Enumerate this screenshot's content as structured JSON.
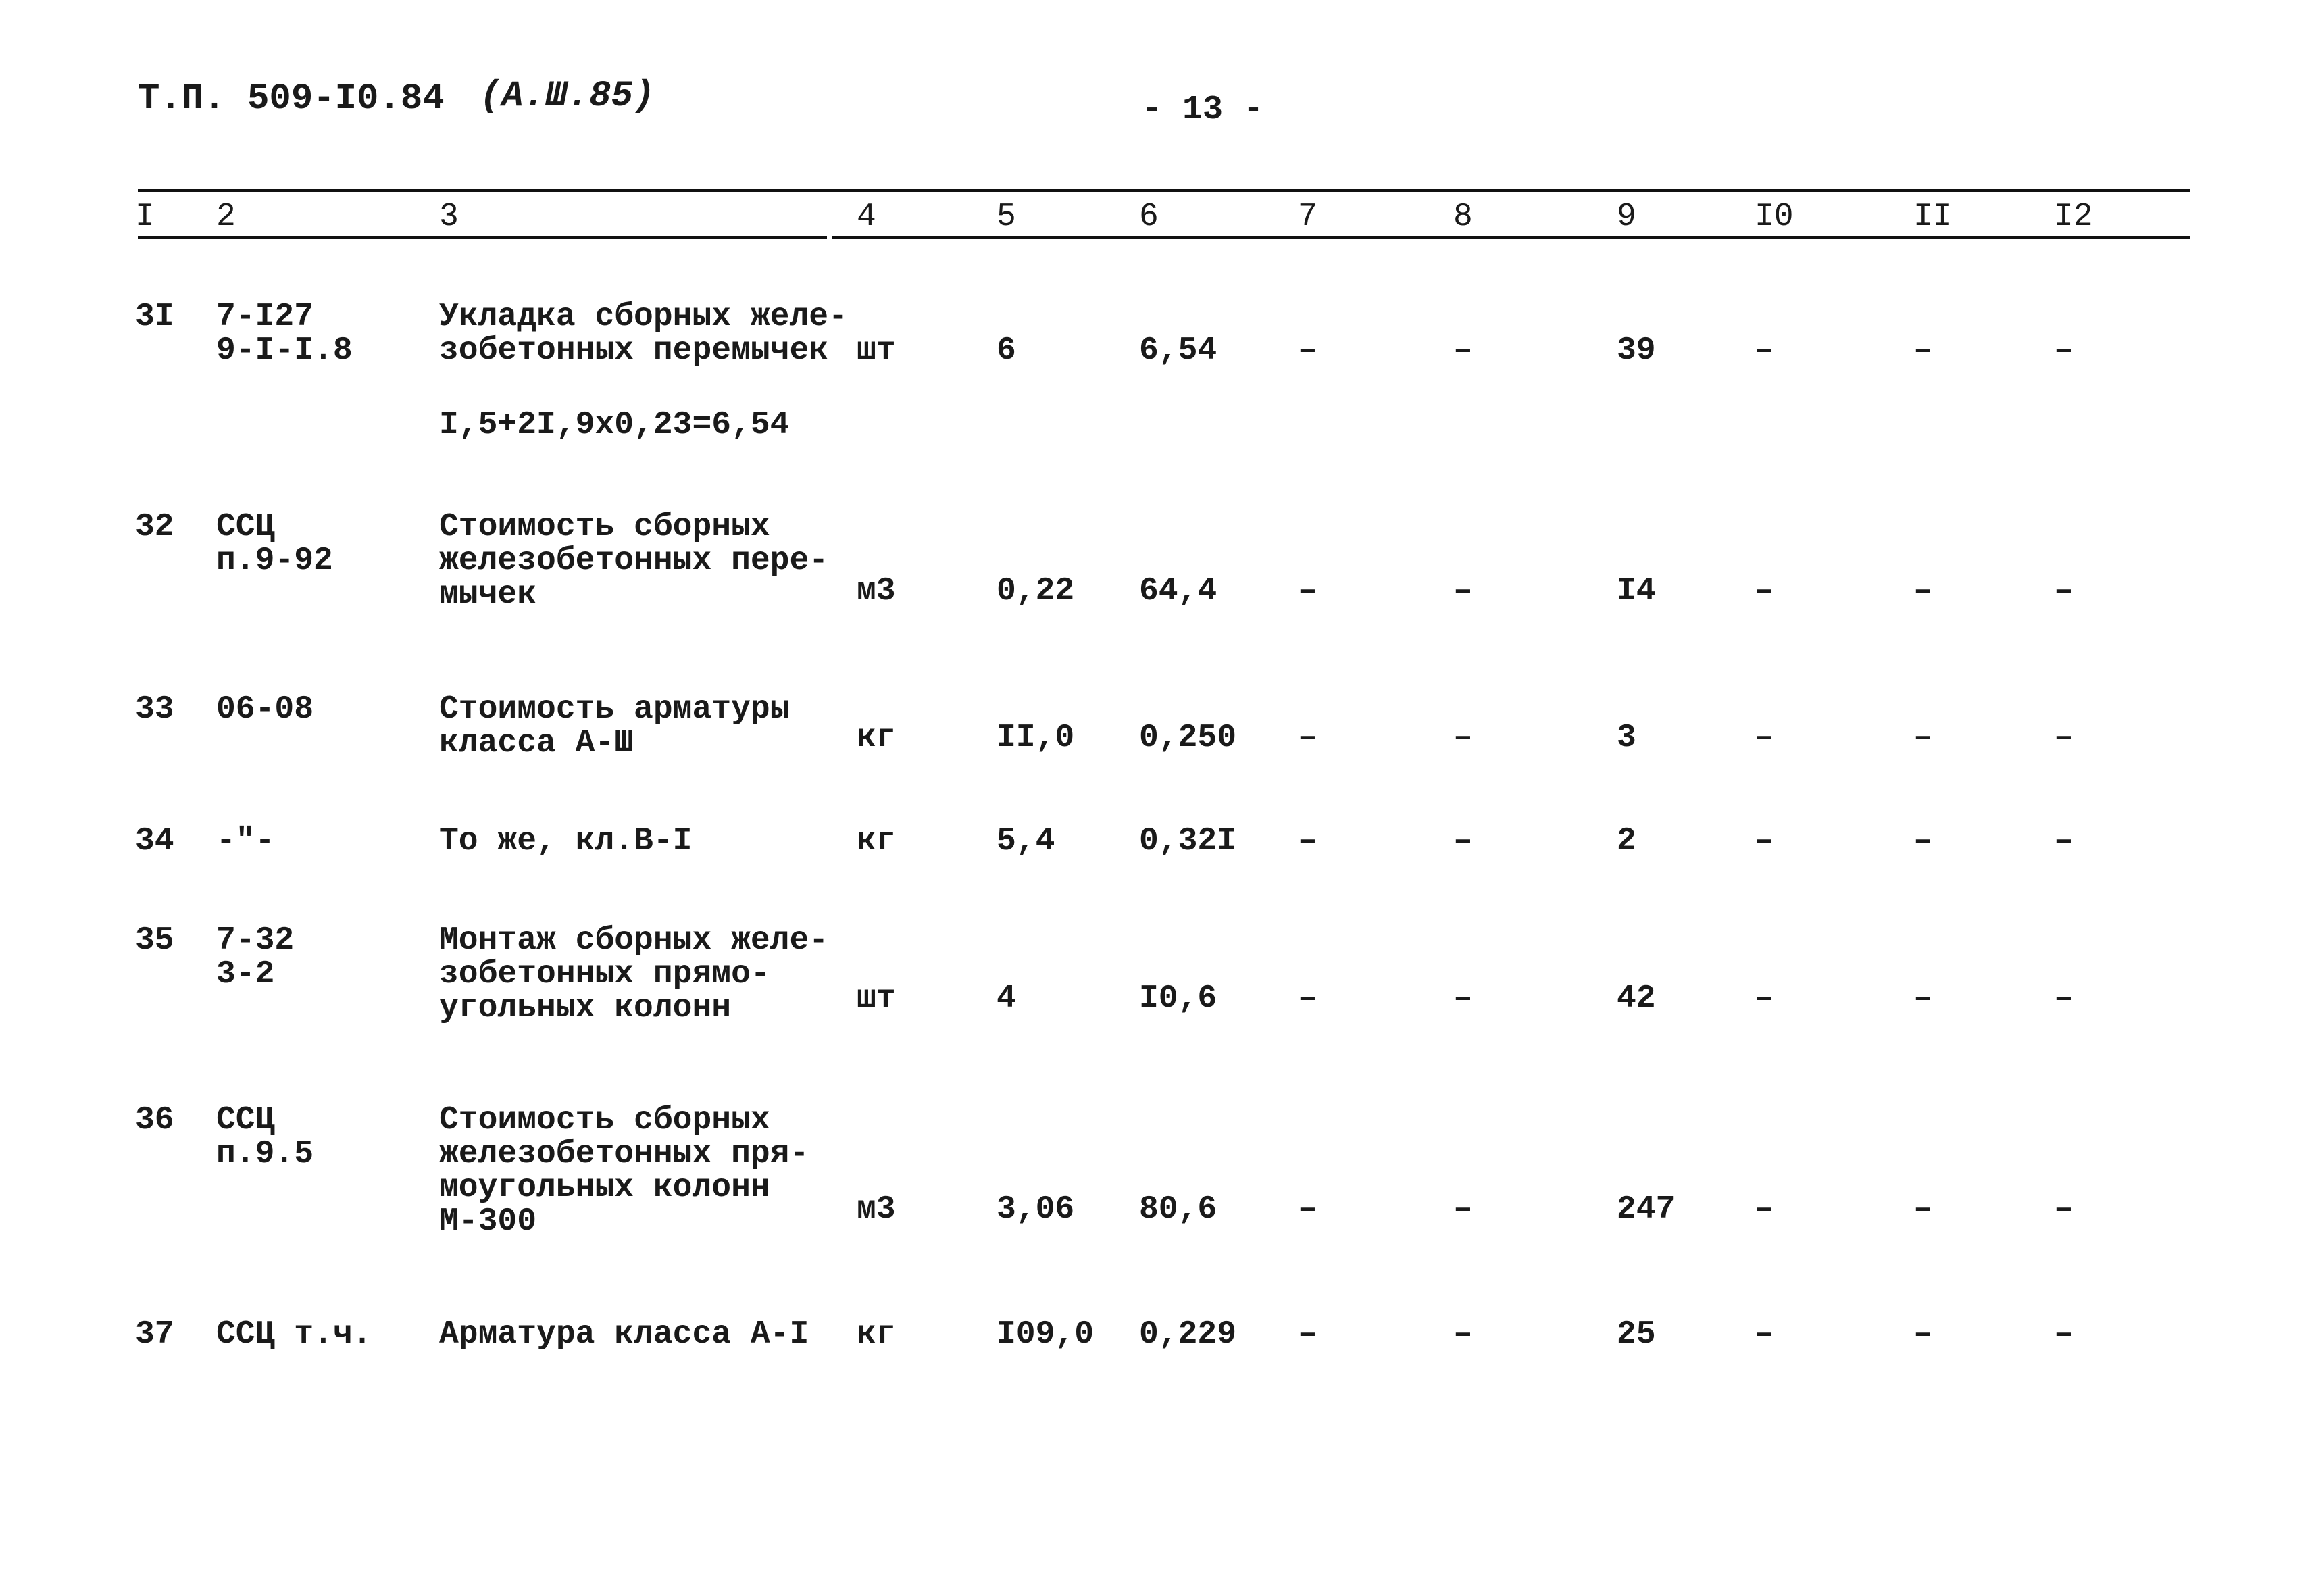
{
  "header": {
    "doc_code": "Т.П.  509-I0.84",
    "revision": "(А.Ш.85)",
    "page_number": "- 13 -"
  },
  "columns": [
    "I",
    "2",
    "3",
    "4",
    "5",
    "6",
    "7",
    "8",
    "9",
    "I0",
    "II",
    "I2"
  ],
  "rows": [
    {
      "n": "3I",
      "code": "7-I27\n9-I-I.8",
      "desc": "Укладка сборных желе-\nзобетонных перемычек",
      "note": "I,5+2I,9x0,23=6,54",
      "unit": "шт",
      "c5": "6",
      "c6": "6,54",
      "c7": "–",
      "c8": "–",
      "c9": "39",
      "c10": "–",
      "c11": "–",
      "c12": "–"
    },
    {
      "n": "32",
      "code": "ССЦ\nп.9-92",
      "desc": "Стоимость сборных\nжелезобетонных пере-\nмычек",
      "unit": "м3",
      "c5": "0,22",
      "c6": "64,4",
      "c7": "–",
      "c8": "–",
      "c9": "I4",
      "c10": "–",
      "c11": "–",
      "c12": "–"
    },
    {
      "n": "33",
      "code": "06-08",
      "desc": "Стоимость арматуры\nкласса А-Ш",
      "unit": "кг",
      "c5": "II,0",
      "c6": "0,250",
      "c7": "–",
      "c8": "–",
      "c9": "3",
      "c10": "–",
      "c11": "–",
      "c12": "–"
    },
    {
      "n": "34",
      "code": "-\"-",
      "desc": "То же, кл.В-I",
      "unit": "кг",
      "c5": "5,4",
      "c6": "0,32I",
      "c7": "–",
      "c8": "–",
      "c9": "2",
      "c10": "–",
      "c11": "–",
      "c12": "–"
    },
    {
      "n": "35",
      "code": "7-32\n3-2",
      "desc": "Монтаж сборных желе-\nзобетонных прямо-\nугольных колонн",
      "unit": "шт",
      "c5": "4",
      "c6": "I0,6",
      "c7": "–",
      "c8": "–",
      "c9": "42",
      "c10": "–",
      "c11": "–",
      "c12": "–"
    },
    {
      "n": "36",
      "code": "ССЦ\nп.9.5",
      "desc": "Стоимость сборных\nжелезобетонных пря-\nмоугольных колонн\nМ-300",
      "unit": "м3",
      "c5": "3,06",
      "c6": "80,6",
      "c7": "–",
      "c8": "–",
      "c9": "247",
      "c10": "–",
      "c11": "–",
      "c12": "–"
    },
    {
      "n": "37",
      "code": "ССЦ т.ч.",
      "desc": "Арматура класса А-I",
      "unit": "кг",
      "c5": "I09,0",
      "c6": "0,229",
      "c7": "–",
      "c8": "–",
      "c9": "25",
      "c10": "–",
      "c11": "–",
      "c12": "–"
    }
  ]
}
